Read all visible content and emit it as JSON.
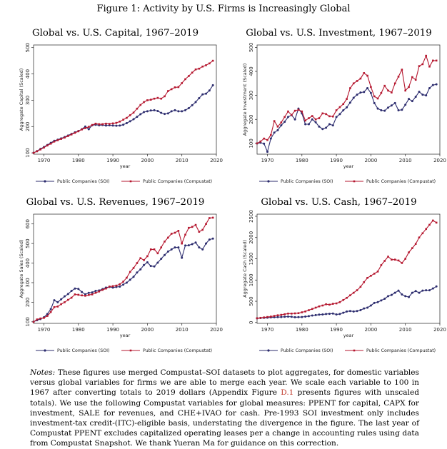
{
  "figure_title": "Figure 1: Activity by U.S. Firms is Increasingly Global",
  "notes": {
    "label": "Notes:",
    "text_before_ref": " These figures use merged Compustat–SOI datasets to plot aggregates, for domestic variables versus global variables for firms we are able to merge each year. We scale each variable to 100 in 1967 after converting totals to 2019 dollars (Appendix Figure ",
    "ref": "D.1",
    "text_after_ref": " presents figures with unscaled totals). We use the following Compustat variables for global measures: PPENT for capital, CAPX for investment, SALE for revenues, and CHE+IVAO for cash. Pre-1993 SOI investment only includes investment-tax credit-(ITC)-eligible basis, understating the divergence in the figure. The last year of Compustat PPENT excludes capitalized operating leases per a change in accounting rules using data from Compustat Snapshot. We thank Yueran Ma for guidance on this correction."
  },
  "colors": {
    "soi": "#2c2c6e",
    "compustat": "#b5172f"
  },
  "chart_data": [
    {
      "type": "line",
      "title": "Global vs. U.S. Capital, 1967–2019",
      "xlabel": "year",
      "ylabel": "Aggregate Capital (Scaled)",
      "xlim": [
        1967,
        2020
      ],
      "ylim": [
        95,
        510
      ],
      "xticks": [
        1970,
        1980,
        1990,
        2000,
        2010,
        2020
      ],
      "yticks": [
        100,
        200,
        300,
        400,
        500
      ],
      "legend": "bottom",
      "x": [
        1967,
        1968,
        1969,
        1970,
        1971,
        1972,
        1973,
        1974,
        1975,
        1976,
        1977,
        1978,
        1979,
        1980,
        1981,
        1982,
        1983,
        1984,
        1985,
        1986,
        1987,
        1988,
        1989,
        1990,
        1991,
        1992,
        1993,
        1994,
        1995,
        1996,
        1997,
        1998,
        1999,
        2000,
        2001,
        2002,
        2003,
        2004,
        2005,
        2006,
        2007,
        2008,
        2009,
        2010,
        2011,
        2012,
        2013,
        2014,
        2015,
        2016,
        2017,
        2018,
        2019
      ],
      "series": [
        {
          "name": "Public Companies (SOI)",
          "values": [
            100,
            107,
            115,
            122,
            130,
            138,
            146,
            150,
            155,
            160,
            166,
            172,
            178,
            183,
            190,
            200,
            190,
            205,
            207,
            205,
            206,
            204,
            205,
            204,
            203,
            204,
            207,
            213,
            220,
            228,
            237,
            247,
            255,
            258,
            261,
            262,
            259,
            252,
            248,
            250,
            258,
            262,
            258,
            258,
            262,
            270,
            281,
            293,
            308,
            322,
            325,
            337,
            357
          ]
        },
        {
          "name": "Public Companies (Compustat)",
          "values": [
            100,
            106,
            113,
            120,
            128,
            135,
            143,
            148,
            153,
            158,
            164,
            170,
            176,
            182,
            189,
            194,
            199,
            206,
            211,
            209,
            209,
            211,
            210,
            212,
            214,
            219,
            226,
            233,
            243,
            253,
            268,
            282,
            293,
            300,
            302,
            306,
            309,
            306,
            315,
            335,
            342,
            349,
            350,
            365,
            380,
            392,
            405,
            417,
            420,
            428,
            433,
            440,
            450
          ]
        }
      ]
    },
    {
      "type": "line",
      "title": "Global vs. U.S. Investment, 1967–2019",
      "xlabel": "year",
      "ylabel": "Aggregate Investment (Scaled)",
      "xlim": [
        1967,
        2020
      ],
      "ylim": [
        55,
        510
      ],
      "xticks": [
        1970,
        1980,
        1990,
        2000,
        2010,
        2020
      ],
      "yticks": [
        100,
        200,
        300,
        400,
        500
      ],
      "legend": "bottom",
      "x": [
        1967,
        1968,
        1969,
        1970,
        1971,
        1972,
        1973,
        1974,
        1975,
        1976,
        1977,
        1978,
        1979,
        1980,
        1981,
        1982,
        1983,
        1984,
        1985,
        1986,
        1987,
        1988,
        1989,
        1990,
        1991,
        1992,
        1993,
        1994,
        1995,
        1996,
        1997,
        1998,
        1999,
        2000,
        2001,
        2002,
        2003,
        2004,
        2005,
        2006,
        2007,
        2008,
        2009,
        2010,
        2011,
        2012,
        2013,
        2014,
        2015,
        2016,
        2017,
        2018,
        2019
      ],
      "series": [
        {
          "name": "Public Companies (SOI)",
          "values": [
            100,
            103,
            99,
            65,
            120,
            145,
            155,
            175,
            190,
            210,
            218,
            200,
            245,
            225,
            180,
            180,
            200,
            188,
            170,
            160,
            165,
            180,
            175,
            210,
            222,
            238,
            250,
            270,
            290,
            303,
            312,
            314,
            330,
            310,
            268,
            245,
            238,
            236,
            249,
            258,
            268,
            238,
            240,
            261,
            285,
            276,
            294,
            315,
            303,
            300,
            330,
            343,
            346
          ]
        },
        {
          "name": "Public Companies (Compustat)",
          "values": [
            100,
            108,
            120,
            114,
            135,
            193,
            170,
            187,
            210,
            233,
            218,
            236,
            240,
            233,
            195,
            205,
            214,
            200,
            205,
            225,
            222,
            213,
            212,
            238,
            251,
            264,
            285,
            330,
            350,
            360,
            370,
            393,
            382,
            335,
            296,
            287,
            310,
            340,
            320,
            312,
            350,
            378,
            407,
            320,
            335,
            376,
            365,
            422,
            430,
            465,
            420,
            445,
            445
          ]
        }
      ]
    },
    {
      "type": "line",
      "title": "Global vs. U.S. Revenues, 1967–2019",
      "xlabel": "year",
      "ylabel": "Aggregate Sales (Scaled)",
      "xlim": [
        1967,
        2020
      ],
      "ylim": [
        92,
        650
      ],
      "xticks": [
        1970,
        1980,
        1990,
        2000,
        2010,
        2020
      ],
      "yticks": [
        100,
        200,
        300,
        400,
        500,
        600
      ],
      "legend": "bottom",
      "x": [
        1967,
        1968,
        1969,
        1970,
        1971,
        1972,
        1973,
        1974,
        1975,
        1976,
        1977,
        1978,
        1979,
        1980,
        1981,
        1982,
        1983,
        1984,
        1985,
        1986,
        1987,
        1988,
        1989,
        1990,
        1991,
        1992,
        1993,
        1994,
        1995,
        1996,
        1997,
        1998,
        1999,
        2000,
        2001,
        2002,
        2003,
        2004,
        2005,
        2006,
        2007,
        2008,
        2009,
        2010,
        2011,
        2012,
        2013,
        2014,
        2015,
        2016,
        2017,
        2018,
        2019
      ],
      "series": [
        {
          "name": "Public Companies (SOI)",
          "values": [
            100,
            108,
            114,
            123,
            140,
            165,
            210,
            200,
            215,
            230,
            242,
            258,
            270,
            268,
            252,
            240,
            248,
            250,
            258,
            260,
            267,
            275,
            278,
            275,
            278,
            280,
            290,
            300,
            315,
            330,
            352,
            368,
            390,
            404,
            385,
            383,
            402,
            422,
            441,
            459,
            470,
            480,
            480,
            427,
            490,
            491,
            497,
            505,
            480,
            470,
            500,
            520,
            525
          ]
        },
        {
          "name": "Public Companies (Compustat)",
          "values": [
            100,
            112,
            117,
            120,
            130,
            150,
            175,
            178,
            190,
            200,
            212,
            223,
            240,
            238,
            235,
            233,
            237,
            240,
            248,
            255,
            263,
            270,
            280,
            282,
            285,
            292,
            305,
            325,
            355,
            375,
            400,
            425,
            415,
            435,
            470,
            470,
            450,
            480,
            510,
            530,
            550,
            555,
            565,
            500,
            545,
            580,
            585,
            595,
            560,
            570,
            600,
            630,
            632
          ]
        }
      ]
    },
    {
      "type": "line",
      "title": "Global vs. U.S. Cash, 1967–2019",
      "xlabel": "year",
      "ylabel": "Aggregate Cash (Scaled)",
      "xlim": [
        1967,
        2020
      ],
      "ylim": [
        -20,
        2550
      ],
      "xticks": [
        1970,
        1980,
        1990,
        2000,
        2010,
        2020
      ],
      "yticks": [
        0,
        500,
        1000,
        1500,
        2000,
        2500
      ],
      "legend": "bottom",
      "x": [
        1967,
        1968,
        1969,
        1970,
        1971,
        1972,
        1973,
        1974,
        1975,
        1976,
        1977,
        1978,
        1979,
        1980,
        1981,
        1982,
        1983,
        1984,
        1985,
        1986,
        1987,
        1988,
        1989,
        1990,
        1991,
        1992,
        1993,
        1994,
        1995,
        1996,
        1997,
        1998,
        1999,
        2000,
        2001,
        2002,
        2003,
        2004,
        2005,
        2006,
        2007,
        2008,
        2009,
        2010,
        2011,
        2012,
        2013,
        2014,
        2015,
        2016,
        2017,
        2018,
        2019
      ],
      "series": [
        {
          "name": "Public Companies (SOI)",
          "values": [
            100,
            105,
            110,
            115,
            120,
            125,
            128,
            130,
            135,
            140,
            135,
            125,
            128,
            130,
            140,
            150,
            165,
            175,
            185,
            190,
            200,
            205,
            210,
            190,
            200,
            230,
            260,
            270,
            260,
            270,
            290,
            330,
            350,
            400,
            460,
            480,
            520,
            560,
            620,
            650,
            700,
            750,
            660,
            620,
            600,
            700,
            740,
            700,
            750,
            760,
            760,
            800,
            850
          ]
        },
        {
          "name": "Public Companies (Compustat)",
          "values": [
            100,
            110,
            120,
            130,
            140,
            155,
            170,
            180,
            195,
            210,
            210,
            215,
            220,
            240,
            260,
            290,
            320,
            350,
            380,
            400,
            430,
            420,
            440,
            450,
            480,
            530,
            580,
            640,
            700,
            760,
            840,
            950,
            1050,
            1100,
            1150,
            1200,
            1350,
            1450,
            1550,
            1480,
            1480,
            1460,
            1400,
            1500,
            1650,
            1750,
            1850,
            2000,
            2100,
            2200,
            2300,
            2400,
            2350
          ]
        }
      ]
    }
  ]
}
